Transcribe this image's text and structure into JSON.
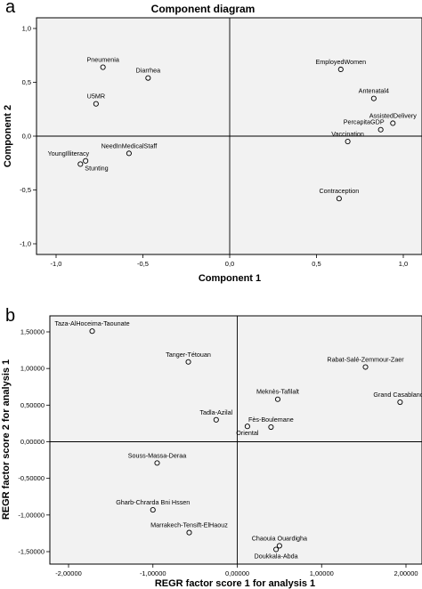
{
  "chart_data": [
    {
      "type": "scatter",
      "panel_label": "a",
      "title": "Component diagram",
      "xlabel": "Component 1",
      "ylabel": "Component 2",
      "xlim": [
        -1.0,
        1.0
      ],
      "ylim": [
        -1.0,
        1.0
      ],
      "xticks": [
        {
          "v": -1.0,
          "label": "-1,0"
        },
        {
          "v": -0.5,
          "label": "-0,5"
        },
        {
          "v": 0.0,
          "label": "0,0"
        },
        {
          "v": 0.5,
          "label": "0,5"
        },
        {
          "v": 1.0,
          "label": "1,0"
        }
      ],
      "yticks": [
        {
          "v": 1.0,
          "label": "1,0"
        },
        {
          "v": 0.5,
          "label": "0,5"
        },
        {
          "v": 0.0,
          "label": "0,0"
        },
        {
          "v": -0.5,
          "label": "-0,5"
        },
        {
          "v": -1.0,
          "label": "-1,0"
        }
      ],
      "grid": false,
      "reference_lines": {
        "x": 0,
        "y": 0
      },
      "points": [
        {
          "label": "Pneumenia",
          "x": -0.73,
          "y": 0.64,
          "label_pos": "above"
        },
        {
          "label": "Diarrhea",
          "x": -0.47,
          "y": 0.54,
          "label_pos": "above"
        },
        {
          "label": "U5MR",
          "x": -0.77,
          "y": 0.3,
          "label_pos": "above"
        },
        {
          "label": "YoungIlliteracy",
          "x": -0.83,
          "y": -0.23,
          "label_pos": "above-left"
        },
        {
          "label": "Stunting",
          "x": -0.86,
          "y": -0.26,
          "label_pos": "right-below"
        },
        {
          "label": "NeedInMedicalStaff",
          "x": -0.58,
          "y": -0.16,
          "label_pos": "above"
        },
        {
          "label": "EmployedWomen",
          "x": 0.64,
          "y": 0.62,
          "label_pos": "above"
        },
        {
          "label": "Antenatal4",
          "x": 0.83,
          "y": 0.35,
          "label_pos": "above"
        },
        {
          "label": "AssistedDelivery",
          "x": 0.94,
          "y": 0.12,
          "label_pos": "above"
        },
        {
          "label": "PercapitaGDP",
          "x": 0.87,
          "y": 0.06,
          "label_pos": "above-left"
        },
        {
          "label": "Vaccination",
          "x": 0.68,
          "y": -0.05,
          "label_pos": "above"
        },
        {
          "label": "Contraception",
          "x": 0.63,
          "y": -0.58,
          "label_pos": "above"
        }
      ]
    },
    {
      "type": "scatter",
      "panel_label": "b",
      "title": "",
      "xlabel": "REGR factor score   1 for analysis 1",
      "ylabel": "REGR factor score   2 for analysis 1",
      "xlim": [
        -2.2,
        2.2
      ],
      "ylim": [
        -1.6,
        1.65
      ],
      "xticks": [
        {
          "v": -2.0,
          "label": "-2,00000"
        },
        {
          "v": -1.0,
          "label": "-1,00000"
        },
        {
          "v": 0.0,
          "label": "0,00000"
        },
        {
          "v": 1.0,
          "label": "1,00000"
        },
        {
          "v": 2.0,
          "label": "2,00000"
        }
      ],
      "yticks": [
        {
          "v": 1.5,
          "label": "1,50000"
        },
        {
          "v": 1.0,
          "label": "1,00000"
        },
        {
          "v": 0.5,
          "label": "0,50000"
        },
        {
          "v": 0.0,
          "label": "0,00000"
        },
        {
          "v": -0.5,
          "label": "-0,50000"
        },
        {
          "v": -1.0,
          "label": "-1,00000"
        },
        {
          "v": -1.5,
          "label": "-1,50000"
        }
      ],
      "grid": false,
      "reference_lines": {
        "x": 0,
        "y": 0
      },
      "points": [
        {
          "label": "Taza-AlHoceima-Taounate",
          "x": -1.72,
          "y": 1.51,
          "label_pos": "above"
        },
        {
          "label": "Tanger-Tétouan",
          "x": -0.58,
          "y": 1.09,
          "label_pos": "above"
        },
        {
          "label": "Rabat-Salé-Zemmour-Zaer",
          "x": 1.52,
          "y": 1.02,
          "label_pos": "above"
        },
        {
          "label": "Grand Casablanca",
          "x": 1.93,
          "y": 0.54,
          "label_pos": "above"
        },
        {
          "label": "Meknès-Tafilalt",
          "x": 0.48,
          "y": 0.58,
          "label_pos": "above"
        },
        {
          "label": "Tadla-Azilal",
          "x": -0.25,
          "y": 0.3,
          "label_pos": "above"
        },
        {
          "label": "Fès-Boulemane",
          "x": 0.4,
          "y": 0.2,
          "label_pos": "above"
        },
        {
          "label": "Oriental",
          "x": 0.12,
          "y": 0.21,
          "label_pos": "below"
        },
        {
          "label": "Souss-Massa-Deraa",
          "x": -0.95,
          "y": -0.29,
          "label_pos": "above"
        },
        {
          "label": "Gharb-Chrarda Bni Hssen",
          "x": -1.0,
          "y": -0.93,
          "label_pos": "above"
        },
        {
          "label": "Marrakech-Tensift-ElHaouz",
          "x": -0.57,
          "y": -1.24,
          "label_pos": "above"
        },
        {
          "label": "Chaouia Ouardigha",
          "x": 0.5,
          "y": -1.42,
          "label_pos": "above"
        },
        {
          "label": "Doukkala-Abda",
          "x": 0.46,
          "y": -1.47,
          "label_pos": "below"
        }
      ]
    }
  ]
}
